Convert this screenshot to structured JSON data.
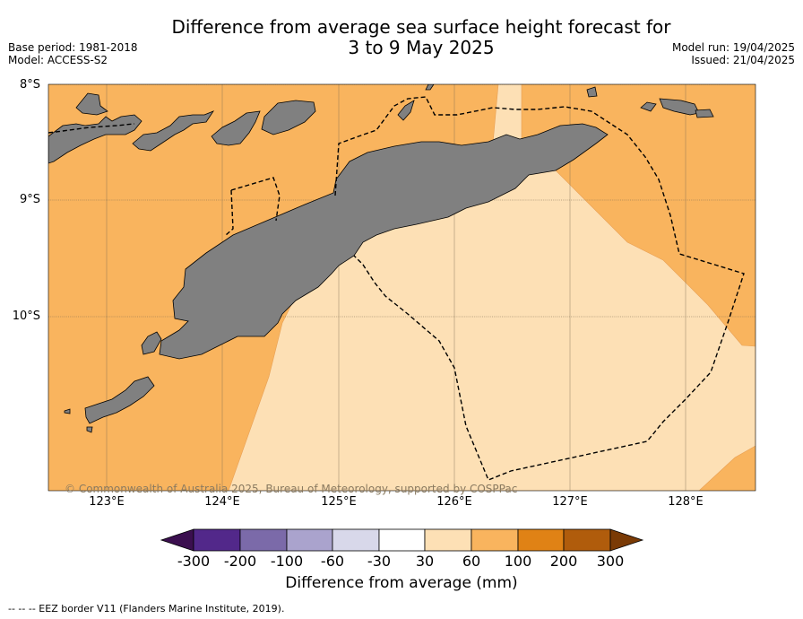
{
  "header": {
    "title_line1": "Difference from average sea surface height forecast for",
    "title_line2": "3 to 9 May 2025",
    "base_period": "Base period: 1981-2018",
    "model": "Model: ACCESS-S2",
    "model_run": "Model run: 19/04/2025",
    "issued": "Issued: 21/04/2025"
  },
  "map": {
    "lat_labels": [
      "8°S",
      "9°S",
      "10°S"
    ],
    "lon_labels": [
      "123°E",
      "124°E",
      "125°E",
      "126°E",
      "127°E",
      "128°E"
    ],
    "copyright": "© Commonwealth of Australia 2025, Bureau of Meteorology, supported by COSPPac",
    "colors": {
      "land": "#808080",
      "band_30_60": "#fde0b5",
      "band_60_100": "#f9b45e",
      "grid": "#7a6a50"
    }
  },
  "colorbar": {
    "title": "Difference from average (mm)",
    "ticks": [
      "-300",
      "-200",
      "-100",
      "-60",
      "-30",
      "30",
      "60",
      "100",
      "200",
      "300"
    ],
    "colors": [
      "#3b0f4f",
      "#52288a",
      "#7b6aa9",
      "#aaa3cd",
      "#d8d8ea",
      "#ffffff",
      "#fde0b5",
      "#f9b45e",
      "#e08215",
      "#b05c0c",
      "#7a3a05"
    ]
  },
  "footer": {
    "legend": "--  --  -- EEZ border V11 (Flanders Marine Institute, 2019)."
  }
}
